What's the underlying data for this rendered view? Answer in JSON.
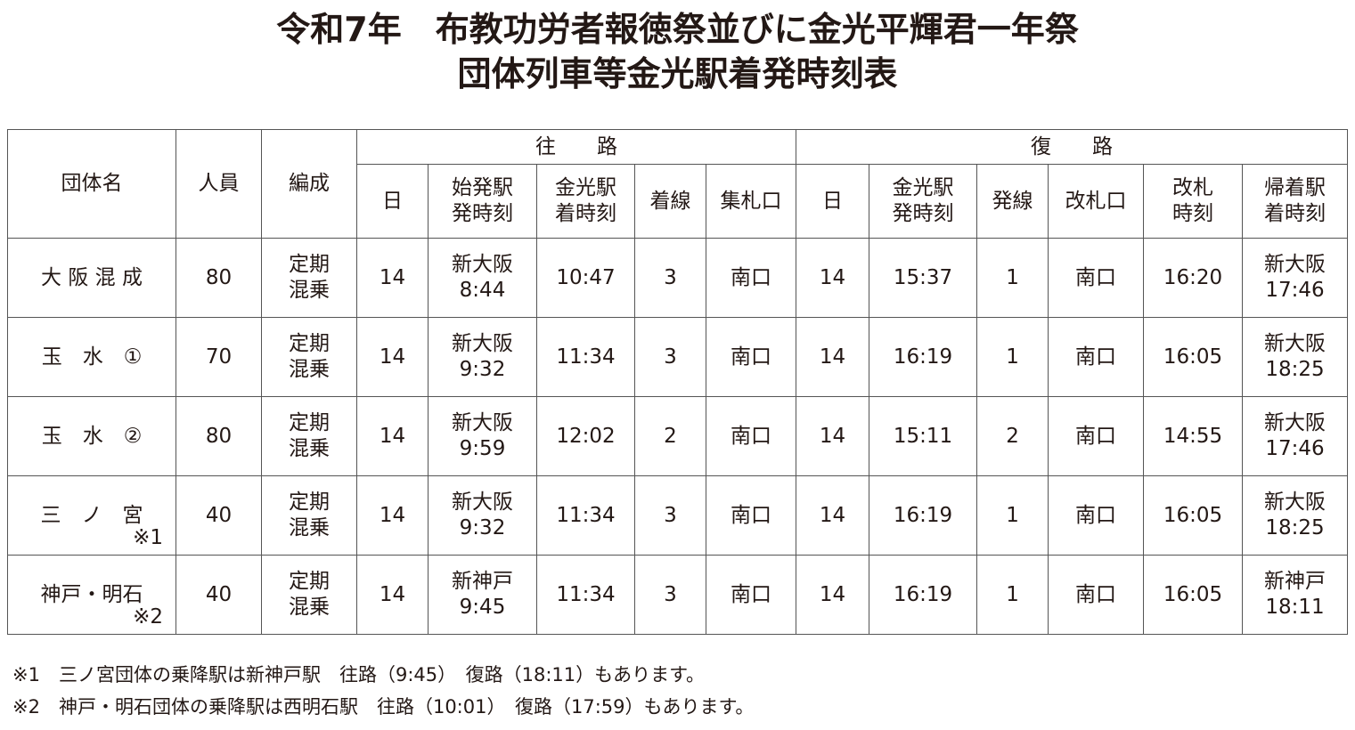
{
  "title": {
    "line1": "令和7年　布教功労者報徳祭並びに金光平輝君一年祭",
    "line2": "団体列車等金光駅着発時刻表"
  },
  "table": {
    "headers": {
      "group": "団体名",
      "people": "人員",
      "formation": "編成",
      "outbound": "往　　路",
      "return": "復　　路",
      "out_cols": [
        [
          "日"
        ],
        [
          "始発駅",
          "発時刻"
        ],
        [
          "金光駅",
          "着時刻"
        ],
        [
          "着線"
        ],
        [
          "集札口"
        ]
      ],
      "ret_cols": [
        [
          "日"
        ],
        [
          "金光駅",
          "発時刻"
        ],
        [
          "発線"
        ],
        [
          "改札口"
        ],
        [
          "改札",
          "時刻"
        ],
        [
          "帰着駅",
          "着時刻"
        ]
      ]
    },
    "rows": [
      {
        "name": "大 阪 混 成",
        "note": "",
        "people": "80",
        "formation": [
          "定期",
          "混乗"
        ],
        "out_day": "14",
        "out_dep": [
          "新大阪",
          "8:44"
        ],
        "out_arr": "10:47",
        "out_track": "3",
        "out_gate": "南口",
        "ret_day": "14",
        "ret_dep": "15:37",
        "ret_track": "1",
        "ret_gate": "南口",
        "ret_ticket": "16:20",
        "ret_arr": [
          "新大阪",
          "17:46"
        ]
      },
      {
        "name": "玉　水　①",
        "note": "",
        "people": "70",
        "formation": [
          "定期",
          "混乗"
        ],
        "out_day": "14",
        "out_dep": [
          "新大阪",
          "9:32"
        ],
        "out_arr": "11:34",
        "out_track": "3",
        "out_gate": "南口",
        "ret_day": "14",
        "ret_dep": "16:19",
        "ret_track": "1",
        "ret_gate": "南口",
        "ret_ticket": "16:05",
        "ret_arr": [
          "新大阪",
          "18:25"
        ]
      },
      {
        "name": "玉　水　②",
        "note": "",
        "people": "80",
        "formation": [
          "定期",
          "混乗"
        ],
        "out_day": "14",
        "out_dep": [
          "新大阪",
          "9:59"
        ],
        "out_arr": "12:02",
        "out_track": "2",
        "out_gate": "南口",
        "ret_day": "14",
        "ret_dep": "15:11",
        "ret_track": "2",
        "ret_gate": "南口",
        "ret_ticket": "14:55",
        "ret_arr": [
          "新大阪",
          "17:46"
        ]
      },
      {
        "name": "三　ノ　宮",
        "note": "※1",
        "people": "40",
        "formation": [
          "定期",
          "混乗"
        ],
        "out_day": "14",
        "out_dep": [
          "新大阪",
          "9:32"
        ],
        "out_arr": "11:34",
        "out_track": "3",
        "out_gate": "南口",
        "ret_day": "14",
        "ret_dep": "16:19",
        "ret_track": "1",
        "ret_gate": "南口",
        "ret_ticket": "16:05",
        "ret_arr": [
          "新大阪",
          "18:25"
        ]
      },
      {
        "name": "神戸・明石",
        "note": "※2",
        "people": "40",
        "formation": [
          "定期",
          "混乗"
        ],
        "out_day": "14",
        "out_dep": [
          "新神戸",
          "9:45"
        ],
        "out_arr": "11:34",
        "out_track": "3",
        "out_gate": "南口",
        "ret_day": "14",
        "ret_dep": "16:19",
        "ret_track": "1",
        "ret_gate": "南口",
        "ret_ticket": "16:05",
        "ret_arr": [
          "新神戸",
          "18:11"
        ]
      }
    ]
  },
  "notes": [
    "※1　三ノ宮団体の乗降駅は新神戸駅　往路（9:45）　復路（18:11）もあります。",
    "※2　神戸・明石団体の乗降駅は西明石駅　往路（10:01）　復路（17:59）もあります。"
  ]
}
